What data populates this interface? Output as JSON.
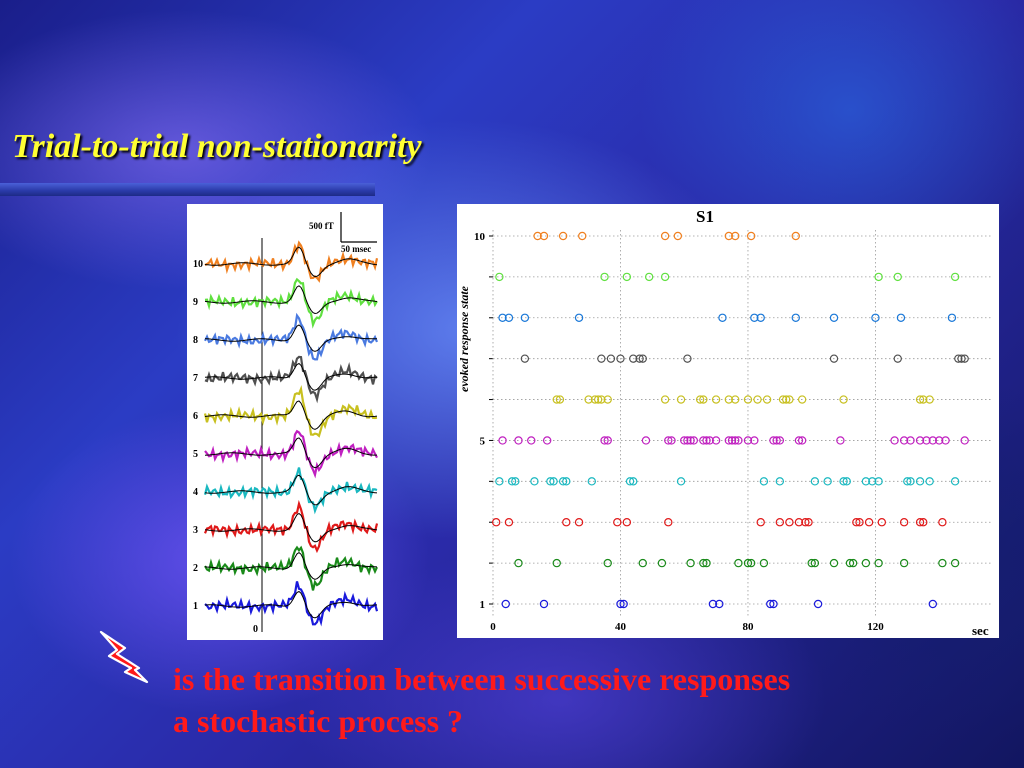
{
  "slide": {
    "title": "Trial-to-trial non-stationarity",
    "question_line1": "is the transition between successive responses",
    "question_line2": "a stochastic process ?",
    "bolt_icon": "lightning-bolt-icon"
  },
  "waveforms": {
    "scale_amplitude": "500 fT",
    "scale_time": "50 msec",
    "zero_label": "0",
    "trials": [
      {
        "label": "1",
        "color": "#1a1adc"
      },
      {
        "label": "2",
        "color": "#1a8a1a"
      },
      {
        "label": "3",
        "color": "#e01a1a"
      },
      {
        "label": "4",
        "color": "#1ab8c0"
      },
      {
        "label": "5",
        "color": "#c020c0"
      },
      {
        "label": "6",
        "color": "#c8c020"
      },
      {
        "label": "7",
        "color": "#505050"
      },
      {
        "label": "8",
        "color": "#4a7ae0"
      },
      {
        "label": "9",
        "color": "#60e040"
      },
      {
        "label": "10",
        "color": "#f08020"
      }
    ]
  },
  "chart_data": {
    "type": "scatter",
    "title": "S1",
    "xlabel": "sec",
    "ylabel": "evoked response state",
    "xlim": [
      0,
      155
    ],
    "ylim": [
      1,
      10
    ],
    "x_ticks": [
      "0",
      "40",
      "80",
      "120"
    ],
    "x_tick_values": [
      0,
      40,
      80,
      120
    ],
    "y_tick_labels": [
      {
        "value": 1,
        "label": "1"
      },
      {
        "value": 5,
        "label": "5"
      },
      {
        "value": 10,
        "label": "10"
      }
    ],
    "grid": true,
    "marker": "open-circle",
    "series": [
      {
        "state": 1,
        "color": "#1a1adc",
        "x": [
          4,
          16,
          40,
          41,
          69,
          71,
          87,
          88,
          102,
          138
        ]
      },
      {
        "state": 2,
        "color": "#1a8a1a",
        "x": [
          8,
          20,
          36,
          47,
          53,
          62,
          66,
          67,
          77,
          80,
          81,
          85,
          100,
          101,
          107,
          112,
          113,
          117,
          121,
          129,
          141,
          145
        ]
      },
      {
        "state": 3,
        "color": "#e01a1a",
        "x": [
          1,
          5,
          23,
          27,
          39,
          42,
          55,
          84,
          90,
          93,
          96,
          98,
          99,
          114,
          115,
          118,
          122,
          129,
          134,
          135,
          141
        ]
      },
      {
        "state": 4,
        "color": "#1ab8c0",
        "x": [
          2,
          6,
          7,
          13,
          18,
          19,
          22,
          23,
          31,
          43,
          44,
          59,
          85,
          90,
          101,
          105,
          110,
          111,
          117,
          119,
          121,
          130,
          131,
          134,
          137,
          145
        ]
      },
      {
        "state": 5,
        "color": "#c020c0",
        "x": [
          3,
          8,
          12,
          17,
          35,
          36,
          48,
          55,
          56,
          60,
          61,
          62,
          63,
          66,
          67,
          68,
          70,
          74,
          75,
          76,
          77,
          80,
          82,
          88,
          89,
          90,
          96,
          97,
          109,
          126,
          129,
          131,
          134,
          136,
          138,
          140,
          142,
          148
        ]
      },
      {
        "state": 6,
        "color": "#c8c020",
        "x": [
          20,
          21,
          30,
          32,
          33,
          34,
          36,
          54,
          59,
          65,
          66,
          70,
          74,
          76,
          80,
          83,
          86,
          91,
          92,
          93,
          97,
          110,
          134,
          135,
          137
        ]
      },
      {
        "state": 7,
        "color": "#505050",
        "x": [
          10,
          34,
          37,
          40,
          44,
          46,
          47,
          61,
          107,
          127,
          146,
          147,
          148
        ]
      },
      {
        "state": 8,
        "color": "#1a78d8",
        "x": [
          3,
          5,
          10,
          27,
          72,
          82,
          84,
          95,
          107,
          120,
          128,
          144
        ]
      },
      {
        "state": 9,
        "color": "#60e040",
        "x": [
          2,
          35,
          42,
          49,
          54,
          121,
          127,
          145
        ]
      },
      {
        "state": 10,
        "color": "#f08020",
        "x": [
          14,
          16,
          22,
          28,
          54,
          58,
          74,
          76,
          81,
          95
        ]
      }
    ]
  }
}
